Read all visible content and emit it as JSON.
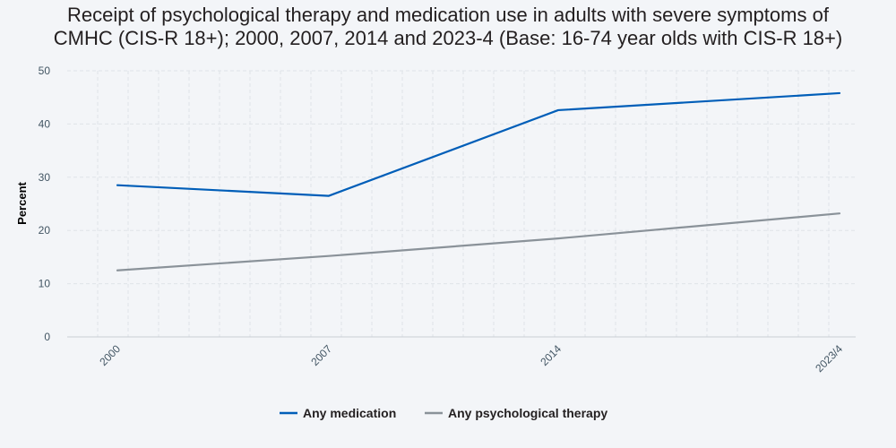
{
  "chart_data": {
    "type": "line",
    "title_lines": [
      "Receipt of psychological therapy and medication use in adults with severe symptoms of",
      "CMHC (CIS-R 18+); 2000, 2007, 2014 and 2023-4 (Base: 16-74 year olds with CIS-R 18+)"
    ],
    "xlabel": "",
    "ylabel": "Percent",
    "categories": [
      "2000",
      "2007",
      "2014",
      "2023/4"
    ],
    "ylim": [
      0,
      50
    ],
    "yticks": [
      0,
      10,
      20,
      30,
      40,
      50
    ],
    "grid": true,
    "legend_position": "bottom",
    "series": [
      {
        "name": "Any medication",
        "values": [
          28.5,
          26.5,
          42.6,
          45.8
        ],
        "color": "#005eb8"
      },
      {
        "name": "Any psychological therapy",
        "values": [
          12.5,
          15.2,
          18.5,
          23.2
        ],
        "color": "#8a9299"
      }
    ]
  }
}
